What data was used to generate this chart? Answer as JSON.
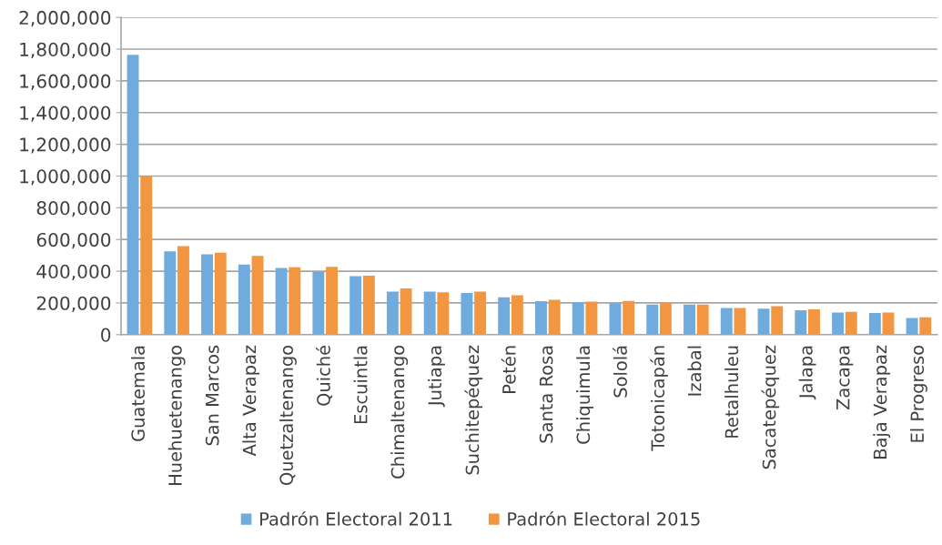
{
  "chart_data": {
    "type": "bar",
    "categories": [
      "Guatemala",
      "Huehuetenango",
      "San Marcos",
      "Alta Verapaz",
      "Quetzaltenango",
      "Quiché",
      "Escuintla",
      "Chimaltenango",
      "Jutiapa",
      "Suchitepéquez",
      "Petén",
      "Santa Rosa",
      "Chiquimula",
      "Sololá",
      "Totonicapán",
      "Izabal",
      "Retalhuleu",
      "Sacatepéquez",
      "Jalapa",
      "Zacapa",
      "Baja Verapaz",
      "El Progreso"
    ],
    "series": [
      {
        "name": "Padrón Electoral 2011",
        "color": "#6fabdd",
        "values": [
          1765000,
          525000,
          506000,
          442000,
          421000,
          396000,
          369000,
          271000,
          271000,
          263000,
          235000,
          211000,
          204000,
          198000,
          190000,
          190000,
          168000,
          164000,
          154000,
          139000,
          137000,
          105000
        ]
      },
      {
        "name": "Padrón Electoral 2015",
        "color": "#f39642",
        "values": [
          1000000,
          558000,
          517000,
          496000,
          425000,
          427000,
          371000,
          292000,
          267000,
          271000,
          248000,
          219000,
          208000,
          213000,
          202000,
          190000,
          168000,
          179000,
          160000,
          143000,
          139000,
          109000
        ]
      }
    ],
    "ylim": [
      0,
      2000000
    ],
    "yticks": [
      {
        "value": 0,
        "label": "0"
      },
      {
        "value": 200000,
        "label": "200,000"
      },
      {
        "value": 400000,
        "label": "400,000"
      },
      {
        "value": 600000,
        "label": "600,000"
      },
      {
        "value": 800000,
        "label": "800,000"
      },
      {
        "value": 1000000,
        "label": "1,000,000"
      },
      {
        "value": 1200000,
        "label": "1,200,000"
      },
      {
        "value": 1400000,
        "label": "1,400,000"
      },
      {
        "value": 1600000,
        "label": "1,600,000"
      },
      {
        "value": 1800000,
        "label": "1,800,000"
      },
      {
        "value": 2000000,
        "label": "2,000,000"
      }
    ],
    "grid": "y",
    "legend": "bottom"
  }
}
